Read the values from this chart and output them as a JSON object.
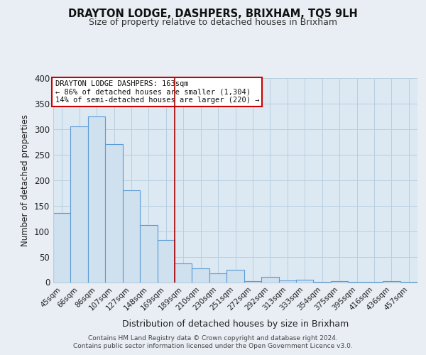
{
  "title": "DRAYTON LODGE, DASHPERS, BRIXHAM, TQ5 9LH",
  "subtitle": "Size of property relative to detached houses in Brixham",
  "xlabel": "Distribution of detached houses by size in Brixham",
  "ylabel": "Number of detached properties",
  "footer_line1": "Contains HM Land Registry data © Crown copyright and database right 2024.",
  "footer_line2": "Contains public sector information licensed under the Open Government Licence v3.0.",
  "bar_labels": [
    "45sqm",
    "66sqm",
    "86sqm",
    "107sqm",
    "127sqm",
    "148sqm",
    "169sqm",
    "189sqm",
    "210sqm",
    "230sqm",
    "251sqm",
    "272sqm",
    "292sqm",
    "313sqm",
    "333sqm",
    "354sqm",
    "375sqm",
    "395sqm",
    "416sqm",
    "436sqm",
    "457sqm"
  ],
  "bar_values": [
    135,
    305,
    325,
    270,
    180,
    112,
    83,
    37,
    27,
    18,
    25,
    2,
    10,
    3,
    5,
    1,
    2,
    1,
    1,
    2,
    1
  ],
  "bar_color": "#cfe0ef",
  "bar_edge_color": "#5b9bd5",
  "annotation_title": "DRAYTON LODGE DASHPERS: 163sqm",
  "annotation_line1": "← 86% of detached houses are smaller (1,304)",
  "annotation_line2": "14% of semi-detached houses are larger (220) →",
  "vline_position": 6.5,
  "vline_color": "#aa0000",
  "ylim": [
    0,
    400
  ],
  "yticks": [
    0,
    50,
    100,
    150,
    200,
    250,
    300,
    350,
    400
  ],
  "fig_background": "#e8eef4",
  "plot_background": "#dce8f2",
  "grid_color": "#b8cfe0",
  "title_fontsize": 10.5,
  "subtitle_fontsize": 9
}
